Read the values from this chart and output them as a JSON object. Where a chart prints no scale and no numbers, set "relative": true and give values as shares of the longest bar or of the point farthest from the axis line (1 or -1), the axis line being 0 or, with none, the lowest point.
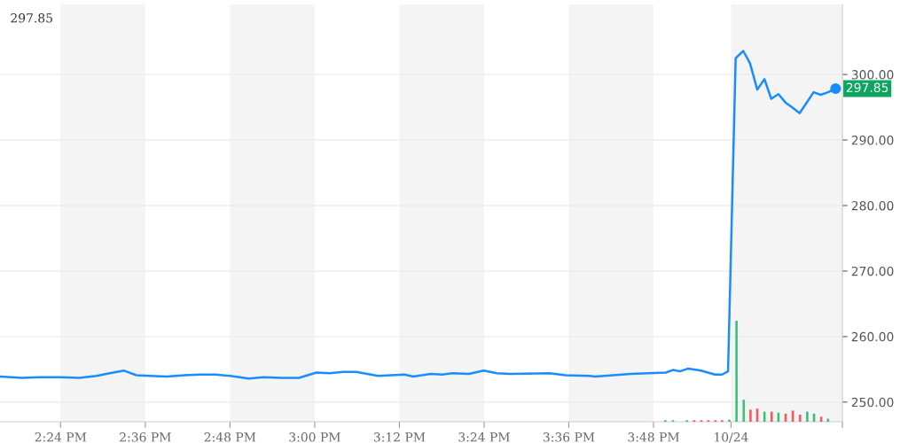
{
  "chart_data": [
    {
      "type": "line",
      "annotations": [
        "297.85",
        {
          "text": "297.85",
          "x": 16.23,
          "y": 297.85
        }
      ],
      "xlim": [
        14.257,
        16.246
      ],
      "xticks": [
        {
          "value": 14.4,
          "label": "2:24 PM"
        },
        {
          "value": 14.6,
          "label": "2:36 PM"
        },
        {
          "value": 14.8,
          "label": "2:48 PM"
        },
        {
          "value": 15.0,
          "label": "3:00 PM"
        },
        {
          "value": 15.2,
          "label": "3:12 PM"
        },
        {
          "value": 15.4,
          "label": "3:24 PM"
        },
        {
          "value": 15.6,
          "label": "3:36 PM"
        },
        {
          "value": 15.8,
          "label": "3:48 PM"
        },
        {
          "value": 15.983,
          "label": "10/24"
        },
        {
          "value": 16.246,
          "label": null
        }
      ],
      "ylim": [
        247,
        310.7
      ],
      "yticks": [
        {
          "value": 250,
          "label": "250.00"
        },
        {
          "value": 260,
          "label": "260.00"
        },
        {
          "value": 270,
          "label": "270.00"
        },
        {
          "value": 280,
          "label": "280.00"
        },
        {
          "value": 290,
          "label": "290.00"
        },
        {
          "value": 300,
          "label": "300.00"
        }
      ],
      "grid": "y",
      "bands": [
        {
          "axis": "x",
          "from": 14.4,
          "to": 14.6,
          "color": "#f4f4f4"
        },
        {
          "axis": "x",
          "from": 14.8,
          "to": 15.0,
          "color": "#f4f4f4"
        },
        {
          "axis": "x",
          "from": 15.2,
          "to": 15.4,
          "color": "#f4f4f4"
        },
        {
          "axis": "x",
          "from": 15.6,
          "to": 15.8,
          "color": "#f4f4f4"
        },
        {
          "axis": "x",
          "from": 15.983,
          "to": 16.246,
          "color": "#f4f4f4"
        }
      ],
      "series": [
        {
          "type": "line",
          "color": "#1a8cff",
          "marker": "none",
          "x": [
            14.257,
            14.309,
            14.35,
            14.4,
            14.444,
            14.485,
            14.516,
            14.55,
            14.579,
            14.61,
            14.651,
            14.693,
            14.73,
            14.766,
            14.801,
            14.844,
            14.88,
            14.921,
            14.963,
            15.004,
            15.036,
            15.067,
            15.098,
            15.15,
            15.212,
            15.233,
            15.274,
            15.301,
            15.326,
            15.364,
            15.399,
            15.43,
            15.461,
            15.555,
            15.592,
            15.648,
            15.663,
            15.746,
            15.829,
            15.846,
            15.862,
            15.881,
            15.912,
            15.945,
            15.962,
            15.976,
            15.994,
            16.012,
            16.028,
            16.045,
            16.062,
            16.078,
            16.095,
            16.112,
            16.127,
            16.145,
            16.178,
            16.195,
            16.212,
            16.23
          ],
          "values": [
            253.9,
            253.7,
            253.8,
            253.8,
            253.7,
            254.0,
            254.4,
            254.8,
            254.1,
            254.0,
            253.9,
            254.1,
            254.2,
            254.2,
            254.0,
            253.6,
            253.8,
            253.7,
            253.7,
            254.5,
            254.4,
            254.6,
            254.6,
            254.0,
            254.2,
            253.9,
            254.3,
            254.2,
            254.4,
            254.3,
            254.8,
            254.4,
            254.3,
            254.4,
            254.1,
            254.0,
            253.9,
            254.3,
            254.5,
            254.9,
            254.7,
            255.1,
            254.8,
            254.2,
            254.2,
            254.7,
            302.5,
            303.6,
            301.7,
            297.7,
            299.3,
            296.3,
            297.0,
            295.7,
            295.0,
            294.1,
            297.3,
            296.9,
            297.3,
            297.85
          ]
        }
      ]
    },
    {
      "type": "bar",
      "relative": true,
      "tick_labels": false,
      "xlim": [
        14.257,
        16.246
      ],
      "x": [
        15.828,
        15.846,
        15.879,
        15.896,
        15.913,
        15.929,
        15.946,
        15.962,
        15.979,
        15.996,
        16.013,
        16.029,
        16.045,
        16.062,
        16.079,
        16.095,
        16.112,
        16.129,
        16.146,
        16.163,
        16.179,
        16.196,
        16.212
      ],
      "values": [
        0.015,
        0.015,
        0.015,
        0.015,
        0.015,
        0.015,
        0.015,
        0.015,
        0.02,
        1,
        0.218,
        0.12,
        0.13,
        0.1,
        0.1,
        0.09,
        0.08,
        0.11,
        0.07,
        0.1,
        0.08,
        0.05,
        0.03
      ],
      "colors": [
        "#3dbf7f",
        "#3dbf7f",
        "#3dbf7f",
        "#f45b5b",
        "#f45b5b",
        "#f45b5b",
        "#f45b5b",
        "#f45b5b",
        "#3dbf7f",
        "#3dbf7f",
        "#3dbf7f",
        "#f45b5b",
        "#f45b5b",
        "#3dbf7f",
        "#f45b5b",
        "#3dbf7f",
        "#f45b5b",
        "#f45b5b",
        "#f45b5b",
        "#3dbf7f",
        "#3dbf7f",
        "#f45b5b",
        "#3dbf7f"
      ]
    }
  ]
}
